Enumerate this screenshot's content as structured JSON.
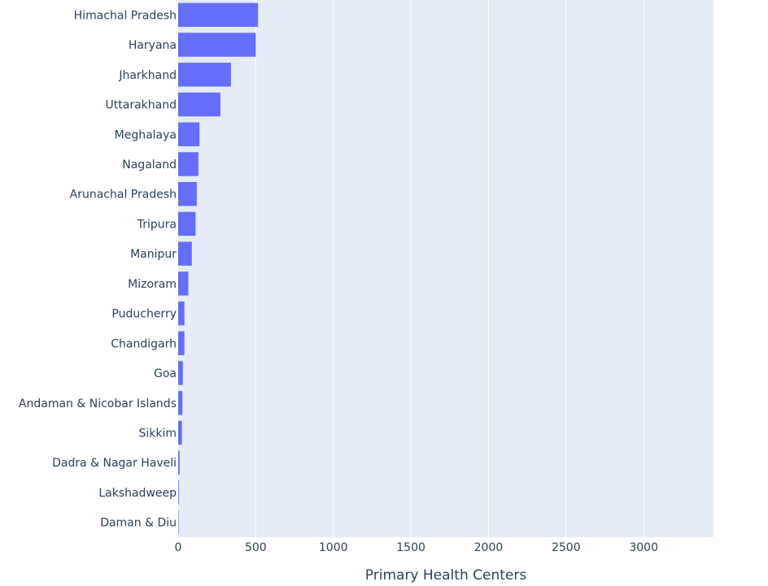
{
  "chart_data": {
    "type": "bar",
    "orientation": "horizontal",
    "categories": [
      "Himachal Pradesh",
      "Haryana",
      "Jharkhand",
      "Uttarakhand",
      "Meghalaya",
      "Nagaland",
      "Arunachal Pradesh",
      "Tripura",
      "Manipur",
      "Mizoram",
      "Puducherry",
      "Chandigarh",
      "Goa",
      "Andaman & Nicobar Islands",
      "Sikkim",
      "Dadra & Nagar Haveli",
      "Lakshadweep",
      "Daman & Diu"
    ],
    "values": [
      515,
      500,
      340,
      272,
      137,
      130,
      120,
      112,
      88,
      65,
      40,
      40,
      30,
      27,
      24,
      9,
      4,
      3
    ],
    "xlabel": "Primary Health Centers",
    "ylabel": "",
    "xlim": [
      0,
      3450
    ],
    "xticks": [
      0,
      500,
      1000,
      1500,
      2000,
      2500,
      3000
    ],
    "xtick_labels": [
      "0",
      "500",
      "1000",
      "1500",
      "2000",
      "2500",
      "3000"
    ],
    "grid": true,
    "legend": "none"
  },
  "colors": {
    "bar": "#636efa",
    "plot_background": "#e5ecf6",
    "grid": "#ffffff",
    "text": "#2a3f5f"
  }
}
